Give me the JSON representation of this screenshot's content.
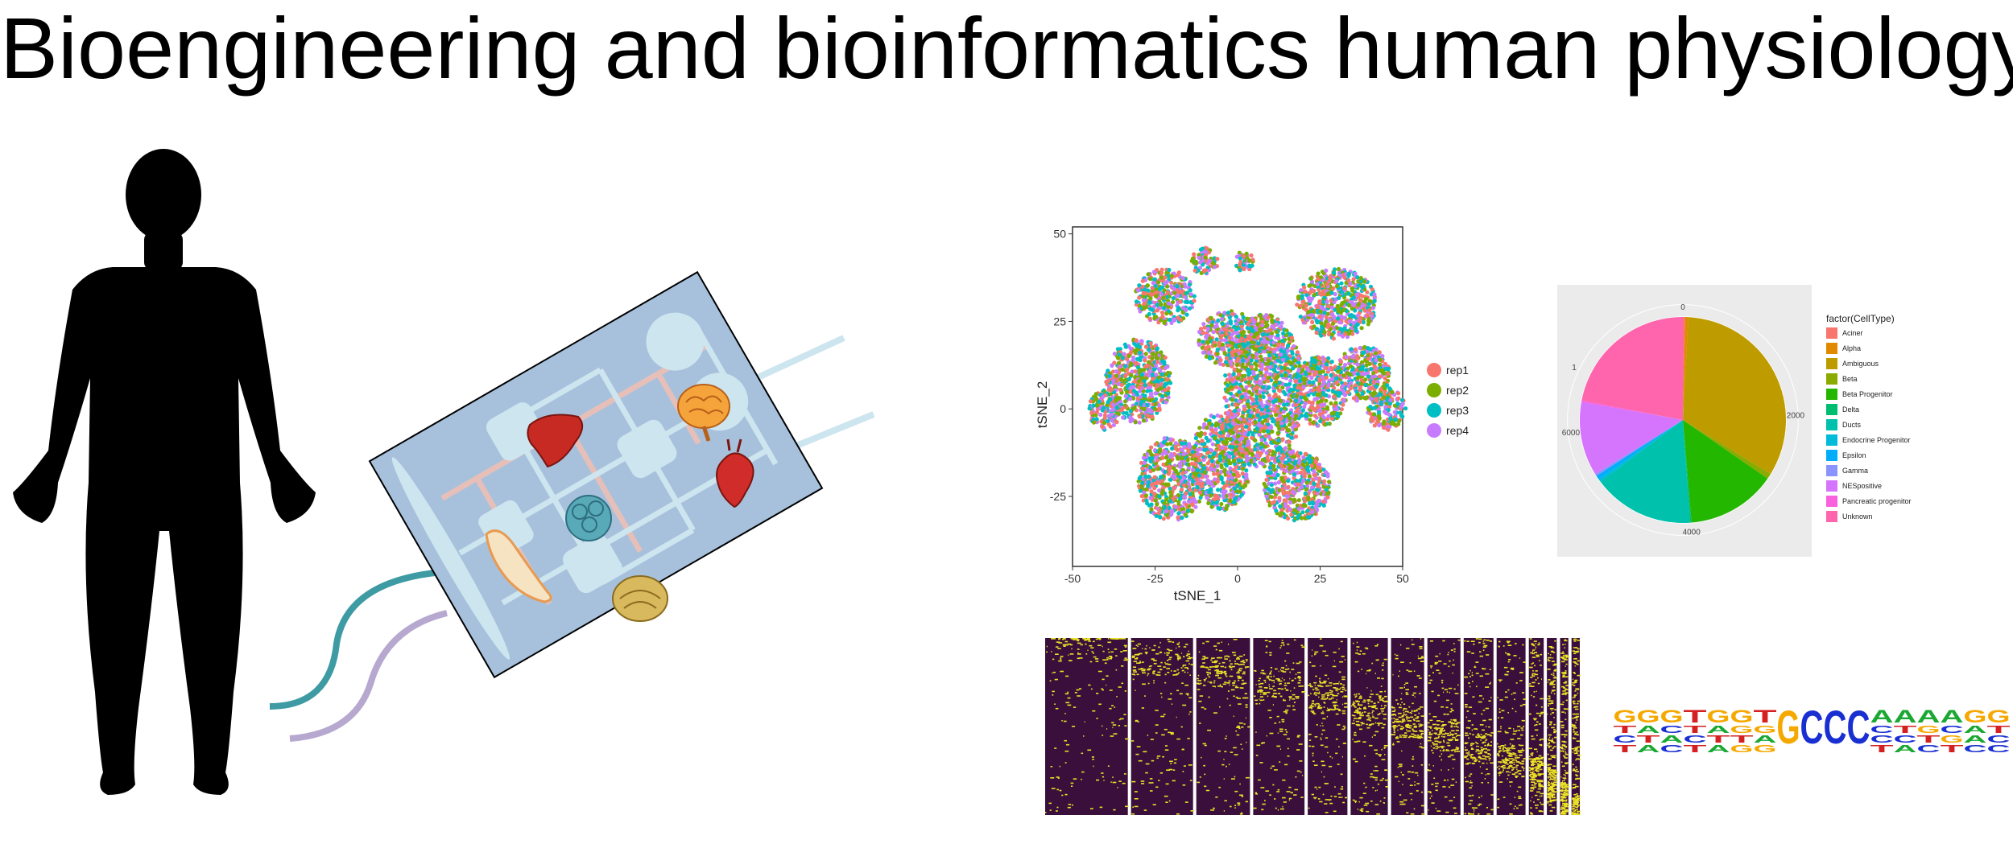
{
  "title": "Bioengineering and bioinformatics human physiology",
  "colors": {
    "chip_bg": "#a7c1dd",
    "chip_channel": "#cde5ee",
    "chip_vessel": "#e6bfb9",
    "tube_teal": "#3e9ba3",
    "tube_lavender": "#b6a8cf",
    "heatmap_low": "#3a0f3c",
    "heatmap_high": "#e9e225"
  },
  "icons": {
    "body": "human-silhouette",
    "chip": "organ-on-chip",
    "organs": [
      "liver-icon",
      "brain-icon",
      "heart-icon",
      "kidney-tissue-icon",
      "intestine-icon",
      "pancreas-icon"
    ]
  },
  "tsne": {
    "xlabel": "tSNE_1",
    "ylabel": "tSNE_2",
    "x_ticks": [
      "-50",
      "-25",
      "0",
      "25",
      "50"
    ],
    "y_ticks": [
      "50",
      "25",
      "0",
      "-25"
    ],
    "legend": [
      "rep1",
      "rep2",
      "rep3",
      "rep4"
    ],
    "legend_colors": [
      "#f8766d",
      "#7cae00",
      "#00bfc4",
      "#c77cff"
    ]
  },
  "chart_data": [
    {
      "type": "scatter",
      "xlabel": "tSNE_1",
      "ylabel": "tSNE_2",
      "xlim": [
        -50,
        50
      ],
      "ylim": [
        -45,
        52
      ],
      "series": [
        {
          "name": "rep1",
          "color": "#f8766d"
        },
        {
          "name": "rep2",
          "color": "#7cae00"
        },
        {
          "name": "rep3",
          "color": "#00bfc4"
        },
        {
          "name": "rep4",
          "color": "#c77cff"
        }
      ],
      "legend_position": "right"
    },
    {
      "type": "pie",
      "legend_title": "factor(CellType)",
      "categories": [
        "Aciner",
        "Alpha",
        "Ambiguous",
        "Beta",
        "Beta Progenitor",
        "Delta",
        "Ducts",
        "Endocrine Progenitor",
        "Epsilon",
        "Gamma",
        "NESpositive",
        "Pancreatic progenitor",
        "Unknown"
      ],
      "colors": [
        "#f8766d",
        "#e18a00",
        "#be9c00",
        "#8cab00",
        "#24b700",
        "#00be70",
        "#00c1ab",
        "#00bbda",
        "#00acfc",
        "#8b93ff",
        "#d575fe",
        "#f962dd",
        "#ff65ac"
      ],
      "values": [
        30,
        40,
        2700,
        70,
        1150,
        20,
        1300,
        40,
        50,
        30,
        950,
        20,
        1800
      ],
      "radial_ticks": [
        "0",
        "2000",
        "4000",
        "6000"
      ],
      "legend_position": "right"
    },
    {
      "type": "heatmap",
      "column_group_widths": [
        100,
        75,
        65,
        62,
        48,
        45,
        40,
        40,
        36,
        35,
        18,
        12,
        10,
        10
      ],
      "color_low": "#3a0f3c",
      "color_high": "#e9e225"
    }
  ],
  "logo": {
    "type": "sequence-logo",
    "sequence": "GGGTGGTGCCCAAAAGG"
  }
}
